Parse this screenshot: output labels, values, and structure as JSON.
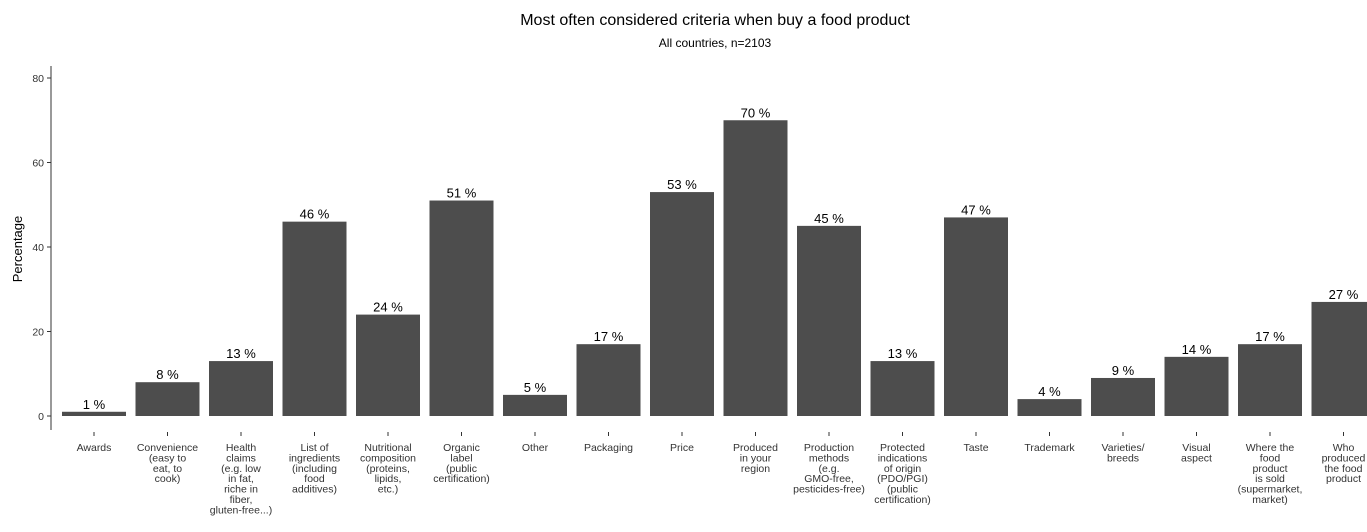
{
  "chart_data": {
    "type": "bar",
    "title": "Most often considered criteria when buy a food product",
    "subtitle": "All countries, n=2103",
    "xlabel": "",
    "ylabel": "Percentage",
    "ylim": [
      0,
      80
    ],
    "yticks": [
      0,
      20,
      40,
      60,
      80
    ],
    "grid": false,
    "categories": [
      "Awards",
      "Convenience\n(easy to\neat, to\ncook)",
      "Health\nclaims\n(e.g. low\nin fat,\nriche in\nfiber,\ngluten-free...)",
      "List of\ningredients\n(including\nfood\nadditives)",
      "Nutritional\ncomposition\n(proteins,\nlipids,\netc.)",
      "Organic\nlabel\n(public\ncertification)",
      "Other",
      "Packaging",
      "Price",
      "Produced\nin your\nregion",
      "Production\nmethods\n(e.g.\nGMO-free,\npesticides-free)",
      "Protected\nindications\nof origin\n(PDO/PGI)\n(public\ncertification)",
      "Taste",
      "Trademark",
      "Varieties/\nbreeds",
      "Visual\naspect",
      "Where the\nfood\nproduct\nis sold\n(supermarket,\nmarket)",
      "Who\nproduced\nthe food\nproduct"
    ],
    "values": [
      1,
      8,
      13,
      46,
      24,
      51,
      5,
      17,
      53,
      70,
      45,
      13,
      47,
      4,
      9,
      14,
      17,
      27
    ],
    "data_labels": [
      "1 %",
      "8 %",
      "13 %",
      "46 %",
      "24 %",
      "51 %",
      "5 %",
      "17 %",
      "53 %",
      "70 %",
      "45 %",
      "13 %",
      "47 %",
      "4 %",
      "9 %",
      "14 %",
      "17 %",
      "27 %"
    ],
    "bar_color": "#4d4d4d"
  }
}
